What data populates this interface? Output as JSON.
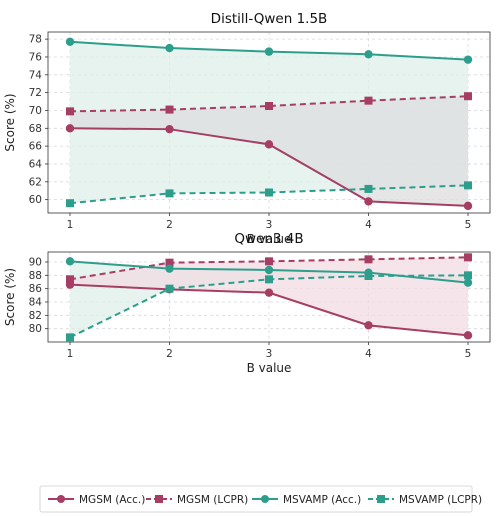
{
  "colors": {
    "mgsm": "#A53E62",
    "msvamp": "#2E9E8C",
    "fill_msvamp": "#DDEFE9",
    "fill_between": "#DEDEDF",
    "fill_mgsm": "#F1DCE3",
    "grid": "#D9D9D9"
  },
  "chart_data": [
    {
      "type": "line",
      "title": "Distill-Qwen 1.5B",
      "xlabel": "B value",
      "ylabel": "Score (%)",
      "x": [
        1,
        2,
        3,
        4,
        5
      ],
      "xticks": [
        "1",
        "2",
        "3",
        "4",
        "5"
      ],
      "ylim": [
        58.5,
        78.8
      ],
      "yticks": [
        60,
        62,
        64,
        66,
        68,
        70,
        72,
        74,
        76,
        78
      ],
      "grid": true,
      "series": [
        {
          "name": "MGSM (Acc.)",
          "values": [
            68.0,
            67.9,
            66.2,
            59.8,
            59.3
          ]
        },
        {
          "name": "MGSM (LCPR)",
          "values": [
            69.9,
            70.1,
            70.5,
            71.1,
            71.6
          ]
        },
        {
          "name": "MSVAMP (Acc.)",
          "values": [
            77.7,
            77.0,
            76.6,
            76.3,
            75.7
          ]
        },
        {
          "name": "MSVAMP (LCPR)",
          "values": [
            59.6,
            60.7,
            60.8,
            61.2,
            61.6
          ]
        }
      ]
    },
    {
      "type": "line",
      "title": "Qwen3 4B",
      "xlabel": "B value",
      "ylabel": "Score (%)",
      "x": [
        1,
        2,
        3,
        4,
        5
      ],
      "xticks": [
        "1",
        "2",
        "3",
        "4",
        "5"
      ],
      "ylim": [
        78.0,
        91.5
      ],
      "yticks": [
        80,
        82,
        84,
        86,
        88,
        90
      ],
      "grid": true,
      "series": [
        {
          "name": "MGSM (Acc.)",
          "values": [
            86.6,
            85.9,
            85.4,
            80.5,
            79.0
          ]
        },
        {
          "name": "MGSM (LCPR)",
          "values": [
            87.4,
            89.9,
            90.1,
            90.4,
            90.7
          ]
        },
        {
          "name": "MSVAMP (Acc.)",
          "values": [
            90.1,
            89.0,
            88.8,
            88.4,
            86.9
          ]
        },
        {
          "name": "MSVAMP (LCPR)",
          "values": [
            78.7,
            86.0,
            87.4,
            87.9,
            88.0
          ]
        }
      ]
    }
  ],
  "legend": {
    "placement": "bottom",
    "items": [
      {
        "label": "MGSM (Acc.)",
        "color_key": "mgsm",
        "marker": "circle",
        "dash": false
      },
      {
        "label": "MGSM (LCPR)",
        "color_key": "mgsm",
        "marker": "square",
        "dash": true
      },
      {
        "label": "MSVAMP (Acc.)",
        "color_key": "msvamp",
        "marker": "circle",
        "dash": false
      },
      {
        "label": "MSVAMP (LCPR)",
        "color_key": "msvamp",
        "marker": "square",
        "dash": true
      }
    ]
  }
}
